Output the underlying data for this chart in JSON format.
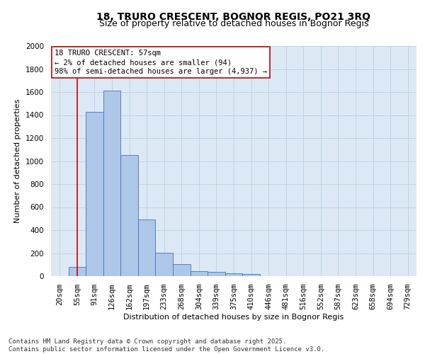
{
  "title_line1": "18, TRURO CRESCENT, BOGNOR REGIS, PO21 3RQ",
  "title_line2": "Size of property relative to detached houses in Bognor Regis",
  "xlabel": "Distribution of detached houses by size in Bognor Regis",
  "ylabel": "Number of detached properties",
  "categories": [
    "20sqm",
    "55sqm",
    "91sqm",
    "126sqm",
    "162sqm",
    "197sqm",
    "233sqm",
    "268sqm",
    "304sqm",
    "339sqm",
    "375sqm",
    "410sqm",
    "446sqm",
    "481sqm",
    "516sqm",
    "552sqm",
    "587sqm",
    "623sqm",
    "658sqm",
    "694sqm",
    "729sqm"
  ],
  "values": [
    0,
    80,
    1430,
    1610,
    1050,
    490,
    205,
    105,
    45,
    35,
    25,
    20,
    0,
    0,
    0,
    0,
    0,
    0,
    0,
    0,
    0
  ],
  "bar_color": "#aec6e8",
  "bar_edge_color": "#4472c4",
  "ylim": [
    0,
    2000
  ],
  "yticks": [
    0,
    200,
    400,
    600,
    800,
    1000,
    1200,
    1400,
    1600,
    1800,
    2000
  ],
  "annotation_line1": "18 TRURO CRESCENT: 57sqm",
  "annotation_line2": "← 2% of detached houses are smaller (94)",
  "annotation_line3": "98% of semi-detached houses are larger (4,937) →",
  "vline_x": 1,
  "vline_color": "#cc0000",
  "plot_bg_color": "#dce9f5",
  "fig_bg_color": "#ffffff",
  "grid_color": "#b8cfe0",
  "footer_line1": "Contains HM Land Registry data © Crown copyright and database right 2025.",
  "footer_line2": "Contains public sector information licensed under the Open Government Licence v3.0.",
  "title_fontsize": 10,
  "subtitle_fontsize": 9,
  "axis_label_fontsize": 8,
  "tick_fontsize": 7.5,
  "annotation_fontsize": 7.5,
  "footer_fontsize": 6.5
}
